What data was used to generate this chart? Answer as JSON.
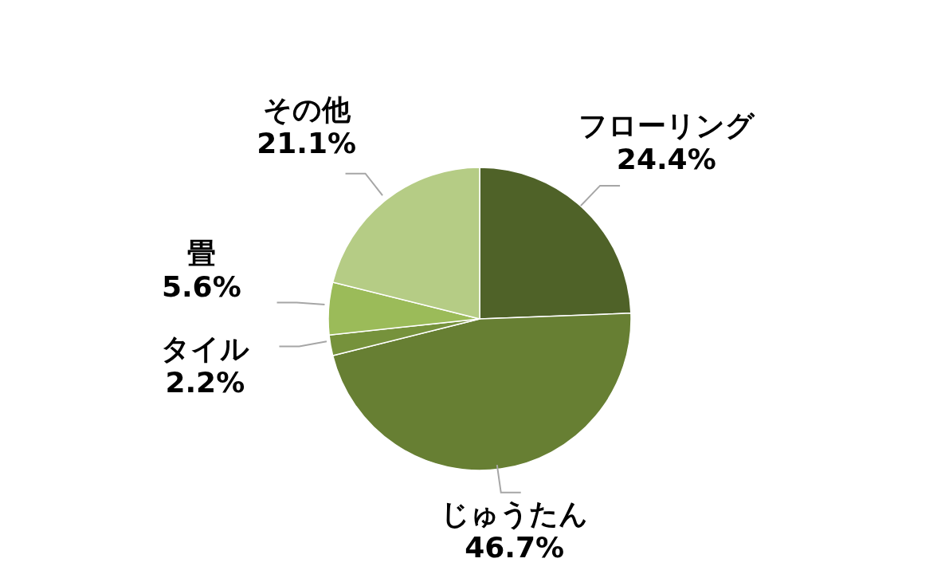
{
  "chart_data": {
    "type": "pie",
    "categories": [
      "フローリング",
      "じゅうたん",
      "タイル",
      "畳",
      "その他"
    ],
    "values": [
      24.4,
      46.7,
      2.2,
      5.6,
      21.1
    ],
    "value_labels": [
      "24.4%",
      "46.7%",
      "2.2%",
      "5.6%",
      "21.1%"
    ],
    "colors": [
      "#4f6228",
      "#677f33",
      "#76923c",
      "#9bbb59",
      "#b5cc85"
    ],
    "legend": false
  }
}
